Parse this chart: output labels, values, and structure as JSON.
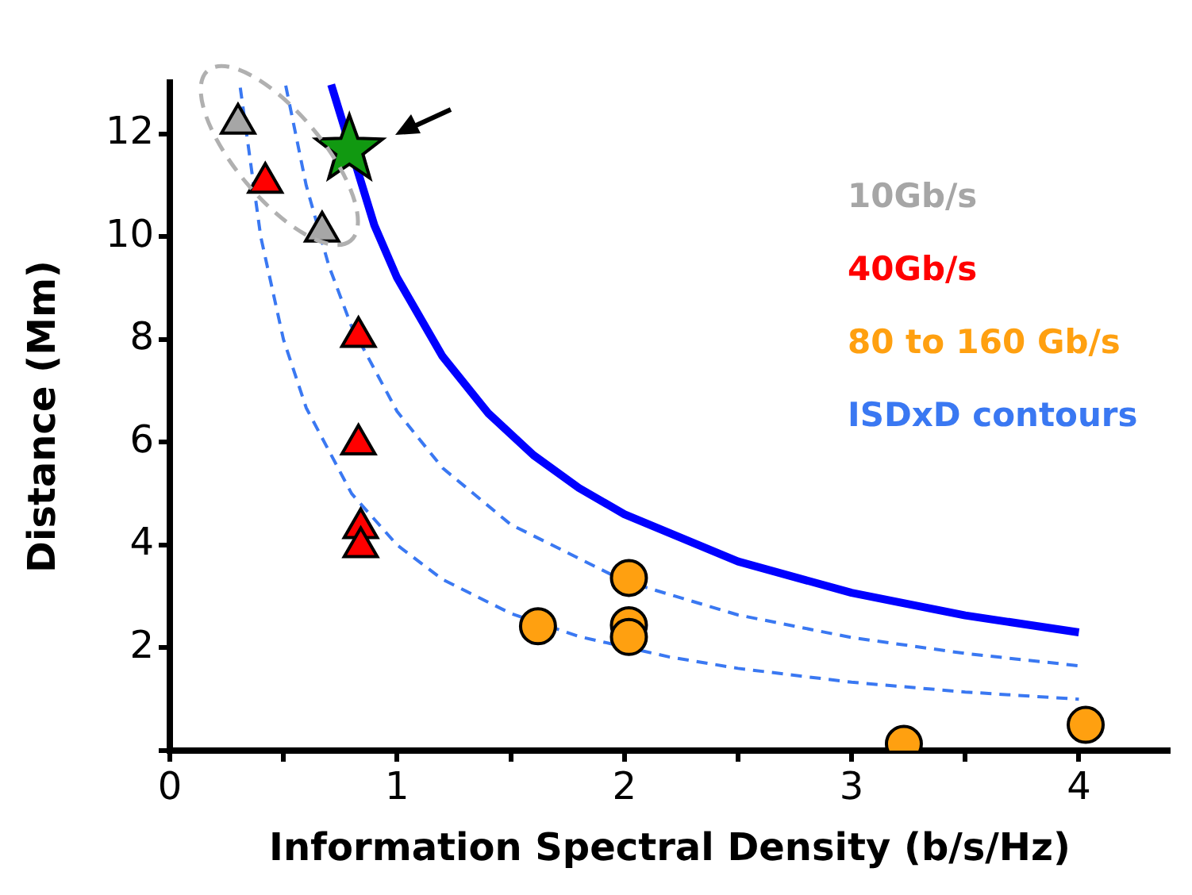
{
  "chart_data": {
    "type": "scatter",
    "xlabel": "Information Spectral Density (b/s/Hz)",
    "ylabel": "Distance (Mm)",
    "xlim": [
      0,
      4.4
    ],
    "xticks": [
      0,
      {
        "value": 0.5,
        "label": null
      },
      1,
      {
        "value": 1.5,
        "label": null
      },
      2,
      {
        "value": 2.5,
        "label": null
      },
      3,
      {
        "value": 3.5,
        "label": null
      },
      4
    ],
    "ylim": [
      0,
      13
    ],
    "yticks": [
      {
        "value": 0,
        "label": null
      },
      2,
      4,
      6,
      8,
      10,
      12
    ],
    "grid": false,
    "legend": "top right",
    "series": [
      {
        "name": "10Gb/s",
        "color": "#a6a6a6",
        "marker": "triangle",
        "x": [
          0.3,
          0.67
        ],
        "values": [
          12.2,
          10.1
        ]
      },
      {
        "name": "40Gb/s",
        "color": "#ff0000",
        "marker": "triangle",
        "x": [
          0.42,
          0.83,
          0.83,
          0.84,
          0.84
        ],
        "values": [
          11.05,
          8.05,
          5.96,
          4.33,
          3.96
        ]
      },
      {
        "name": "80 to 160 Gb/s",
        "color": "#ffa010",
        "marker": "circle",
        "x": [
          1.62,
          2.02,
          2.02,
          2.02,
          3.23,
          4.03
        ],
        "values": [
          2.42,
          3.36,
          2.44,
          2.21,
          0.13,
          0.5
        ]
      },
      {
        "type": "line",
        "name": "ISDxD contours",
        "color": "#3a78f2",
        "line_style": "dashed",
        "marker": "none",
        "x": [
          0.51,
          0.6,
          0.7,
          0.8,
          1.0,
          1.2,
          1.5,
          2.0,
          2.5,
          3.0,
          3.5,
          4.0
        ],
        "values": [
          12.94,
          11.0,
          9.43,
          8.25,
          6.6,
          5.5,
          4.4,
          3.3,
          2.64,
          2.2,
          1.89,
          1.65
        ]
      },
      {
        "type": "line",
        "color": "#3a78f2",
        "line_style": "dashed",
        "marker": "none",
        "x": [
          0.31,
          0.4,
          0.5,
          0.6,
          0.8,
          1.0,
          1.2,
          1.5,
          1.8,
          2.2,
          2.5,
          3.0,
          3.5,
          4.0
        ],
        "values": [
          12.9,
          10,
          8,
          6.67,
          5,
          4,
          3.33,
          2.67,
          2.22,
          1.82,
          1.6,
          1.33,
          1.14,
          1.0
        ]
      },
      {
        "type": "line",
        "color": "#0000ff",
        "line_style": "solid",
        "marker": "none",
        "x": [
          0.71,
          0.9,
          1.0,
          1.2,
          1.4,
          1.6,
          1.8,
          2.0,
          2.5,
          3.0,
          3.5,
          4.0
        ],
        "values": [
          12.96,
          10.22,
          9.2,
          7.67,
          6.57,
          5.75,
          5.11,
          4.6,
          3.68,
          3.07,
          2.63,
          2.3
        ]
      },
      {
        "color": "#119911",
        "marker": "star",
        "x": [
          0.79
        ],
        "values": [
          11.69
        ]
      }
    ]
  }
}
